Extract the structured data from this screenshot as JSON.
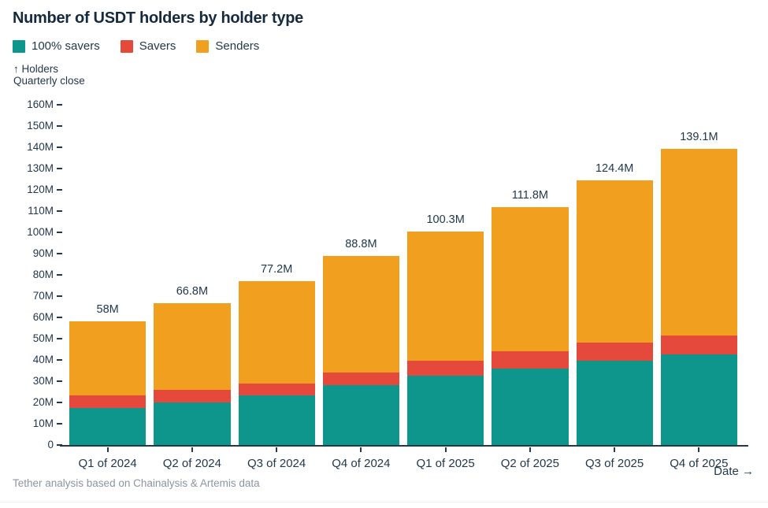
{
  "axis": {
    "y_title_line1": "↑ Holders",
    "y_title_line2": "Quarterly close",
    "x_title": "Date →"
  },
  "footer": "Tether analysis based on Chainalysis & Artemis data",
  "colors": {
    "text_navy": "#22384C",
    "title_navy": "#152A3E",
    "footer_gray": "#8B95A1",
    "savers_100": "#0E968C",
    "savers": "#E5493B",
    "senders": "#F0A01E"
  },
  "chart_data": {
    "type": "bar",
    "stacked": true,
    "title": "Number of USDT holders by holder type",
    "xlabel": "Date",
    "ylabel": "Holders, Quarterly close",
    "legend_position": "top-left",
    "grid": false,
    "ylim": [
      0,
      160
    ],
    "ytick_step": 10,
    "unit": "M",
    "ytick_labels": [
      "0",
      "10M",
      "20M",
      "30M",
      "40M",
      "50M",
      "60M",
      "70M",
      "80M",
      "90M",
      "100M",
      "110M",
      "120M",
      "130M",
      "140M",
      "150M",
      "160M"
    ],
    "categories": [
      "Q1 of 2024",
      "Q2 of 2024",
      "Q3 of 2024",
      "Q4 of 2024",
      "Q1 of 2025",
      "Q2 of 2025",
      "Q3 of 2025",
      "Q4 of 2025"
    ],
    "series": [
      {
        "name": "100% savers",
        "color": "#0E968C",
        "values": [
          17.5,
          20,
          23.5,
          28,
          32.5,
          36,
          39.5,
          42.5
        ]
      },
      {
        "name": "Savers",
        "color": "#E5493B",
        "values": [
          6,
          6,
          5.5,
          6,
          7,
          8,
          8.5,
          9
        ]
      },
      {
        "name": "Senders",
        "color": "#F0A01E",
        "values": [
          34.5,
          40.8,
          48.2,
          54.8,
          60.8,
          67.8,
          76.4,
          87.6
        ]
      }
    ],
    "totals": [
      58,
      66.8,
      77.2,
      88.8,
      100.3,
      111.8,
      124.4,
      139.1
    ],
    "total_labels": [
      "58M",
      "66.8M",
      "77.2M",
      "88.8M",
      "100.3M",
      "111.8M",
      "124.4M",
      "139.1M"
    ]
  }
}
